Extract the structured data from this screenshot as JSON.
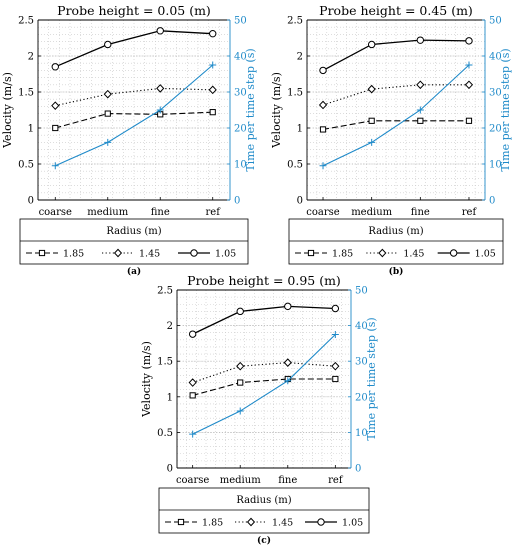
{
  "chart_data": [
    {
      "panel_label": "(a)",
      "type": "line",
      "title": "Probe height = 0.05 (m)",
      "categories": [
        "coarse",
        "medium",
        "fine",
        "ref"
      ],
      "ylabel": "Velocity (m/s)",
      "ylabel_right": "Time per time step (s)",
      "ylim": [
        0,
        2.5
      ],
      "yticks": [
        "0",
        "0.5",
        "1",
        "1.5",
        "2",
        "2.5"
      ],
      "ylim_right": [
        0,
        50
      ],
      "yticks_right": [
        "0",
        "10",
        "20",
        "30",
        "40",
        "50"
      ],
      "series": [
        {
          "name": "1.85",
          "marker": "square",
          "dash": "dashed",
          "values": [
            1.0,
            1.2,
            1.19,
            1.22
          ]
        },
        {
          "name": "1.45",
          "marker": "diamond",
          "dash": "dotted",
          "values": [
            1.31,
            1.47,
            1.55,
            1.53
          ]
        },
        {
          "name": "1.05",
          "marker": "circle",
          "dash": "solid",
          "values": [
            1.85,
            2.16,
            2.35,
            2.31
          ]
        }
      ],
      "time_series": {
        "color": "#1f8ac9",
        "marker": "plus",
        "values": [
          9.5,
          16,
          25,
          37.5
        ]
      },
      "legend_title": "Radius (m)",
      "grid": true
    },
    {
      "panel_label": "(b)",
      "type": "line",
      "title": "Probe height = 0.45 (m)",
      "categories": [
        "coarse",
        "medium",
        "fine",
        "ref"
      ],
      "ylabel": "Velocity (m/s)",
      "ylabel_right": "Time per time step (s)",
      "ylim": [
        0,
        2.5
      ],
      "yticks": [
        "0",
        "0.5",
        "1",
        "1.5",
        "2",
        "2.5"
      ],
      "ylim_right": [
        0,
        50
      ],
      "yticks_right": [
        "0",
        "10",
        "20",
        "30",
        "40",
        "50"
      ],
      "series": [
        {
          "name": "1.85",
          "marker": "square",
          "dash": "dashed",
          "values": [
            0.98,
            1.1,
            1.1,
            1.1
          ]
        },
        {
          "name": "1.45",
          "marker": "diamond",
          "dash": "dotted",
          "values": [
            1.32,
            1.54,
            1.6,
            1.6
          ]
        },
        {
          "name": "1.05",
          "marker": "circle",
          "dash": "solid",
          "values": [
            1.8,
            2.16,
            2.22,
            2.21
          ]
        }
      ],
      "time_series": {
        "color": "#1f8ac9",
        "marker": "plus",
        "values": [
          9.5,
          16,
          25,
          37.5
        ]
      },
      "legend_title": "Radius (m)",
      "grid": true
    },
    {
      "panel_label": "(c)",
      "type": "line",
      "title": "Probe height = 0.95 (m)",
      "categories": [
        "coarse",
        "medium",
        "fine",
        "ref"
      ],
      "ylabel": "Velocity (m/s)",
      "ylabel_right": "Time per time step (s)",
      "ylim": [
        0,
        2.5
      ],
      "yticks": [
        "0",
        "0.5",
        "1",
        "1.5",
        "2",
        "2.5"
      ],
      "ylim_right": [
        0,
        50
      ],
      "yticks_right": [
        "0",
        "10",
        "20",
        "30",
        "40",
        "50"
      ],
      "series": [
        {
          "name": "1.85",
          "marker": "square",
          "dash": "dashed",
          "values": [
            1.02,
            1.2,
            1.25,
            1.25
          ]
        },
        {
          "name": "1.45",
          "marker": "diamond",
          "dash": "dotted",
          "values": [
            1.2,
            1.43,
            1.48,
            1.43
          ]
        },
        {
          "name": "1.05",
          "marker": "circle",
          "dash": "solid",
          "values": [
            1.88,
            2.2,
            2.27,
            2.24
          ]
        }
      ],
      "time_series": {
        "color": "#1f8ac9",
        "marker": "plus",
        "values": [
          9.5,
          16,
          24.5,
          37.5
        ]
      },
      "legend_title": "Radius (m)",
      "grid": true
    }
  ]
}
